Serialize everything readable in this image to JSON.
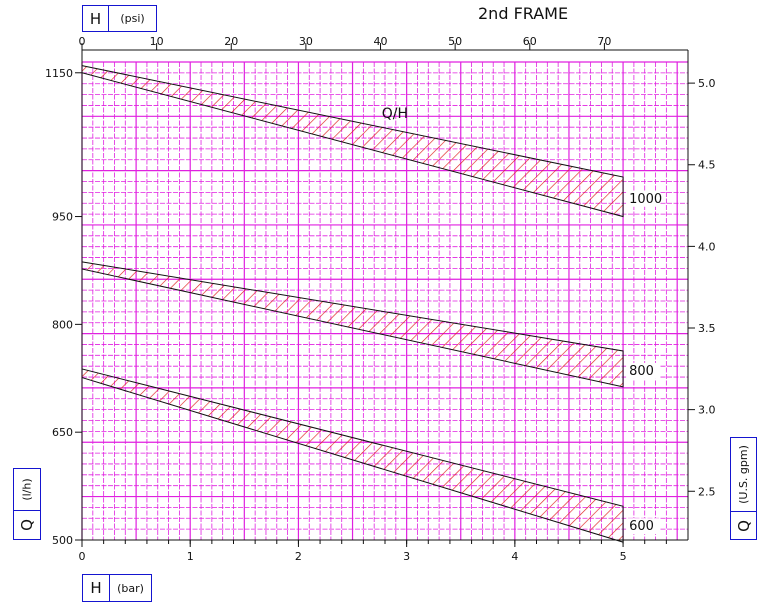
{
  "title": "2nd FRAME",
  "legend_label": "Q/H",
  "unit_boxes": {
    "top_left": {
      "symbol": "H",
      "unit": "(psi)"
    },
    "bottom_left": {
      "symbol": "H",
      "unit": "(bar)"
    },
    "left": {
      "symbol": "Q",
      "unit": "(l/h)"
    },
    "right": {
      "symbol": "Q",
      "unit": "(U.S. gpm)"
    }
  },
  "colors": {
    "grid": "#e020e0",
    "hatch": "#e02020",
    "outline": "#111111",
    "box": "#1515d0"
  },
  "chart_data": {
    "type": "area",
    "title": "2nd FRAME",
    "annotation": "Q/H",
    "x_bottom": {
      "label": "H (bar)",
      "range": [
        0,
        5.6
      ],
      "ticks": [
        "0",
        "1",
        "2",
        "3",
        "4",
        "5"
      ]
    },
    "x_top": {
      "label": "H (psi)",
      "range": [
        0,
        81.2
      ],
      "ticks": [
        "0",
        "10",
        "20",
        "30",
        "40",
        "50",
        "60",
        "70"
      ]
    },
    "y_left": {
      "label": "Q (l/h)",
      "range": [
        500,
        1165
      ],
      "ticks": [
        "500",
        "650",
        "800",
        "950",
        "1150"
      ]
    },
    "y_right": {
      "label": "Q (U.S. gpm)",
      "ticks": [
        "2.5",
        "3.0",
        "3.5",
        "4.0",
        "4.5",
        "5.0"
      ]
    },
    "grid": true,
    "series": [
      {
        "name": "1000",
        "x": [
          0,
          5
        ],
        "upper": [
          1160,
          1005
        ],
        "lower": [
          1150,
          950
        ]
      },
      {
        "name": "800",
        "x": [
          0,
          5
        ],
        "upper": [
          887,
          763
        ],
        "lower": [
          877,
          713
        ]
      },
      {
        "name": "600",
        "x": [
          0,
          5
        ],
        "upper": [
          738,
          547
        ],
        "lower": [
          726,
          497
        ]
      }
    ]
  }
}
